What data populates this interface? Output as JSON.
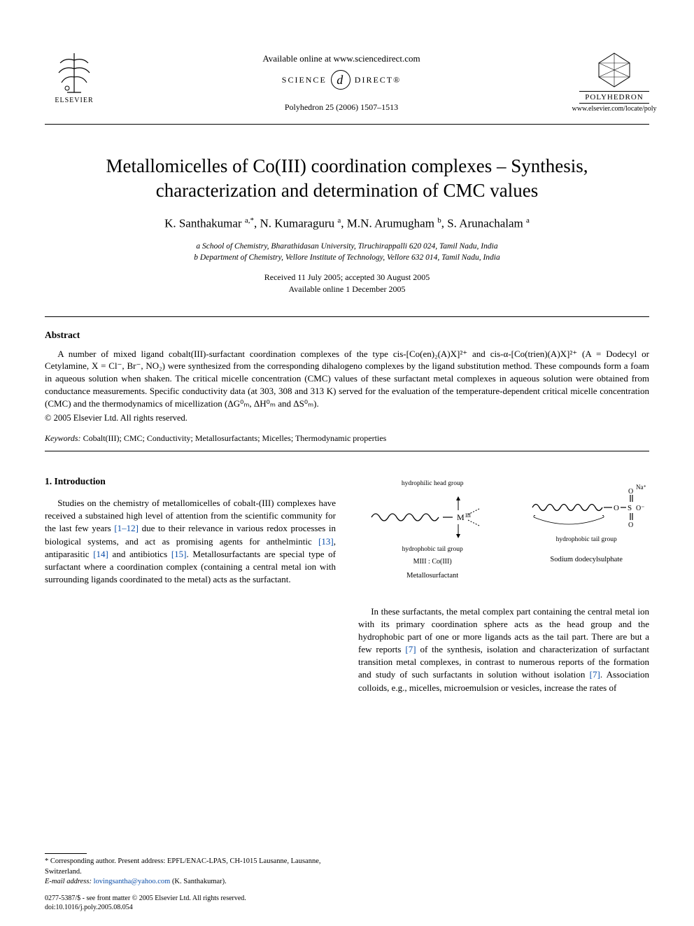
{
  "header": {
    "available_online": "Available online at www.sciencedirect.com",
    "science_direct_left": "SCIENCE",
    "science_direct_right": "DIRECT®",
    "citation": "Polyhedron 25 (2006) 1507–1513",
    "elsevier_label": "ELSEVIER",
    "journal_name": "POLYHEDRON",
    "journal_url": "www.elsevier.com/locate/poly"
  },
  "title": "Metallomicelles of Co(III) coordination complexes – Synthesis, characterization and determination of CMC values",
  "authors_html": "K. Santhakumar <sup>a,*</sup>, N. Kumaraguru <sup>a</sup>, M.N. Arumugham <sup>b</sup>, S. Arunachalam <sup>a</sup>",
  "affiliations": {
    "a": "a School of Chemistry, Bharathidasan University, Tiruchirappalli 620 024, Tamil Nadu, India",
    "b": "b Department of Chemistry, Vellore Institute of Technology, Vellore 632 014, Tamil Nadu, India"
  },
  "dates": {
    "received": "Received 11 July 2005; accepted 30 August 2005",
    "online": "Available online 1 December 2005"
  },
  "abstract": {
    "heading": "Abstract",
    "body": "A number of mixed ligand cobalt(III)-surfactant coordination complexes of the type cis-[Co(en)₂(A)X]²⁺ and cis-α-[Co(trien)(A)X]²⁺ (A = Dodecyl or Cetylamine, X = Cl⁻, Br⁻, NO₂) were synthesized from the corresponding dihalogeno complexes by the ligand substitution method. These compounds form a foam in aqueous solution when shaken. The critical micelle concentration (CMC) values of these surfactant metal complexes in aqueous solution were obtained from conductance measurements. Specific conductivity data (at 303, 308 and 313 K) served for the evaluation of the temperature-dependent critical micelle concentration (CMC) and the thermodynamics of micellization (ΔG⁰ₘ, ΔH⁰ₘ and ΔS⁰ₘ).",
    "copyright": "© 2005 Elsevier Ltd. All rights reserved."
  },
  "keywords": {
    "label": "Keywords:",
    "text": " Cobalt(III); CMC; Conductivity; Metallosurfactants; Micelles; Thermodynamic properties"
  },
  "section1": {
    "heading": "1. Introduction",
    "para1_pre": "Studies on the chemistry of metallomicelles of cobalt-(III) complexes have received a substained high level of attention from the scientific community for the last few years ",
    "ref1": "[1–12]",
    "para1_mid1": " due to their relevance in various redox processes in biological systems, and act as promising agents for anthelmintic ",
    "ref2": "[13]",
    "para1_mid2": ", antiparasitic ",
    "ref3": "[14]",
    "para1_mid3": " and antibiotics ",
    "ref4": "[15]",
    "para1_post": ". Metallosurfactants are special type of surfactant where a coordination complex (containing a central metal ion with surrounding ligands coordinated to the metal) acts as the surfactant."
  },
  "figure": {
    "head_label": "hydrophilic head group",
    "tail_label": "hydrophobic tail group",
    "metal_label": "MIII",
    "metal_sub": "MIII : Co(III)",
    "caption_left": "Metallosurfactant",
    "caption_right": "Sodium dodecylsulphate",
    "tail_label_right": "hydrophobic tail group",
    "na_label": "Na⁺"
  },
  "col2_para": {
    "pre": "In these surfactants, the metal complex part containing the central metal ion with its primary coordination sphere acts as the head group and the hydrophobic part of one or more ligands acts as the tail part. There are but a few reports ",
    "ref5": "[7]",
    "mid": " of the synthesis, isolation and characterization of surfactant transition metal complexes, in contrast to numerous reports of the formation and study of such surfactants in solution without isolation ",
    "ref6": "[7]",
    "post": ". Association colloids, e.g., micelles, microemulsion or vesicles, increase the rates of"
  },
  "footnote": {
    "corr": "* Corresponding author. Present address: EPFL/ENAC-LPAS, CH-1015 Lausanne, Lausanne, Switzerland.",
    "email_label": "E-mail address: ",
    "email": "lovingsantha@yahoo.com",
    "email_post": " (K. Santhakumar)."
  },
  "issn": {
    "line1": "0277-5387/$ - see front matter © 2005 Elsevier Ltd. All rights reserved.",
    "line2": "doi:10.1016/j.poly.2005.08.054"
  },
  "colors": {
    "link": "#0a4da8",
    "text": "#000000",
    "background": "#ffffff"
  }
}
